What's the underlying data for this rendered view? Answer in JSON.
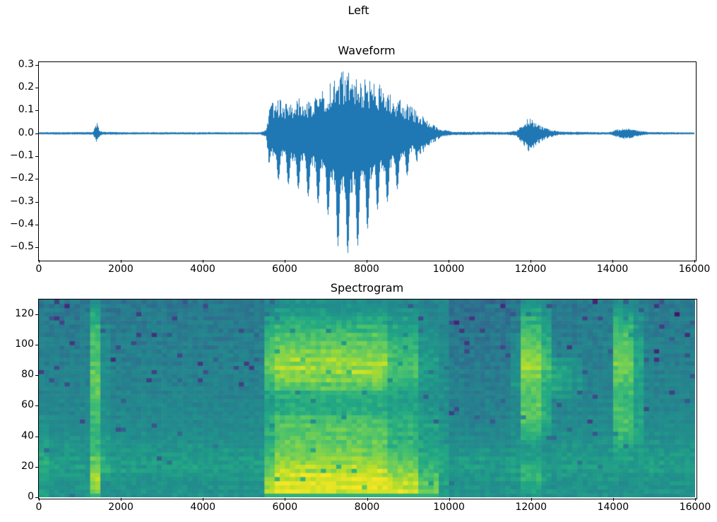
{
  "figure": {
    "suptitle": "Left",
    "background_color": "#ffffff",
    "text_color": "#000000"
  },
  "chart_data": [
    {
      "type": "line",
      "role": "audio-waveform",
      "title": "Waveform",
      "line_color": "#1f77b4",
      "x_range": [
        0,
        16000
      ],
      "y_range": [
        -0.552,
        0.312
      ],
      "x_tick_values": [
        0,
        2000,
        4000,
        6000,
        8000,
        10000,
        12000,
        14000,
        16000
      ],
      "x_tick_labels": [
        "0",
        "2000",
        "4000",
        "6000",
        "8000",
        "10000",
        "12000",
        "14000",
        "16000"
      ],
      "y_tick_values": [
        0.3,
        0.2,
        0.1,
        0.0,
        -0.1,
        -0.2,
        -0.3,
        -0.4,
        -0.5
      ],
      "y_tick_labels": [
        "0.3",
        "0.2",
        "0.1",
        "0.0",
        "−0.1",
        "−0.2",
        "−0.3",
        "−0.4",
        "−0.5"
      ],
      "grid": false,
      "legend": "none",
      "envelope_points": [
        [
          0,
          0.005,
          -0.005
        ],
        [
          1310,
          0.006,
          -0.006
        ],
        [
          1380,
          0.034,
          -0.03
        ],
        [
          1415,
          0.05,
          -0.047
        ],
        [
          1460,
          0.018,
          -0.018
        ],
        [
          1540,
          0.007,
          -0.007
        ],
        [
          2200,
          0.005,
          -0.005
        ],
        [
          5400,
          0.005,
          -0.005
        ],
        [
          5540,
          0.018,
          -0.018
        ],
        [
          5610,
          0.1,
          -0.14
        ],
        [
          5700,
          0.14,
          -0.19
        ],
        [
          5900,
          0.15,
          -0.21
        ],
        [
          6100,
          0.135,
          -0.225
        ],
        [
          6300,
          0.16,
          -0.24
        ],
        [
          6500,
          0.145,
          -0.27
        ],
        [
          6700,
          0.165,
          -0.29
        ],
        [
          6900,
          0.19,
          -0.32
        ],
        [
          7100,
          0.23,
          -0.37
        ],
        [
          7300,
          0.26,
          -0.5
        ],
        [
          7500,
          0.28,
          -0.53
        ],
        [
          7700,
          0.25,
          -0.5
        ],
        [
          7900,
          0.235,
          -0.48
        ],
        [
          8050,
          0.24,
          -0.4
        ],
        [
          8200,
          0.225,
          -0.34
        ],
        [
          8400,
          0.21,
          -0.32
        ],
        [
          8600,
          0.18,
          -0.28
        ],
        [
          8800,
          0.15,
          -0.23
        ],
        [
          9000,
          0.13,
          -0.18
        ],
        [
          9200,
          0.1,
          -0.13
        ],
        [
          9400,
          0.07,
          -0.08
        ],
        [
          9600,
          0.04,
          -0.045
        ],
        [
          9800,
          0.018,
          -0.018
        ],
        [
          10100,
          0.008,
          -0.008
        ],
        [
          11400,
          0.006,
          -0.006
        ],
        [
          11650,
          0.012,
          -0.012
        ],
        [
          11800,
          0.045,
          -0.05
        ],
        [
          11950,
          0.07,
          -0.082
        ],
        [
          12100,
          0.055,
          -0.06
        ],
        [
          12250,
          0.035,
          -0.038
        ],
        [
          12450,
          0.018,
          -0.018
        ],
        [
          12700,
          0.008,
          -0.008
        ],
        [
          13900,
          0.005,
          -0.005
        ],
        [
          14080,
          0.016,
          -0.015
        ],
        [
          14250,
          0.028,
          -0.026
        ],
        [
          14450,
          0.025,
          -0.023
        ],
        [
          14650,
          0.012,
          -0.011
        ],
        [
          14850,
          0.006,
          -0.006
        ],
        [
          16000,
          0.004,
          -0.004
        ]
      ]
    },
    {
      "type": "heatmap",
      "role": "audio-spectrogram",
      "title": "Spectrogram",
      "colormap": "viridis",
      "colormap_stops": [
        [
          0.0,
          "#440154"
        ],
        [
          0.1,
          "#482878"
        ],
        [
          0.2,
          "#3e4a89"
        ],
        [
          0.3,
          "#31688e"
        ],
        [
          0.4,
          "#26828e"
        ],
        [
          0.5,
          "#21918c"
        ],
        [
          0.6,
          "#22a884"
        ],
        [
          0.7,
          "#44bf70"
        ],
        [
          0.8,
          "#7ad151"
        ],
        [
          0.9,
          "#bddf26"
        ],
        [
          1.0,
          "#fde725"
        ]
      ],
      "x_range": [
        0,
        16000
      ],
      "y_range": [
        0,
        129.5
      ],
      "x_tick_values": [
        0,
        2000,
        4000,
        6000,
        8000,
        10000,
        12000,
        14000,
        16000
      ],
      "x_tick_labels": [
        "0",
        "2000",
        "4000",
        "6000",
        "8000",
        "10000",
        "12000",
        "14000",
        "16000"
      ],
      "y_tick_values": [
        0,
        20,
        40,
        60,
        80,
        100,
        120
      ],
      "y_tick_labels": [
        "0",
        "20",
        "40",
        "60",
        "80",
        "100",
        "120"
      ],
      "value_range": [
        0,
        100
      ],
      "grid": {
        "time_cols": 64,
        "freq_rows": 24,
        "col_x_step": 250,
        "row_y_step": 5.4,
        "row_order": "bottom_to_top",
        "profiles": {
          "Q": [
            50,
            50,
            52,
            55,
            55,
            52,
            50,
            48,
            46,
            45,
            44,
            43,
            42,
            42,
            41,
            41,
            40,
            40,
            39,
            39,
            38,
            38,
            37,
            36
          ],
          "Q2": [
            50,
            50,
            52,
            54,
            54,
            50,
            47,
            45,
            43,
            42,
            41,
            40,
            39,
            39,
            38,
            38,
            37,
            37,
            36,
            36,
            35,
            35,
            34,
            33
          ],
          "E": [
            56,
            56,
            58,
            61,
            61,
            58,
            56,
            54,
            52,
            51,
            44,
            43,
            42,
            42,
            41,
            41,
            40,
            40,
            39,
            39,
            38,
            38,
            37,
            36
          ],
          "S": [
            78,
            82,
            84,
            80,
            74,
            70,
            66,
            64,
            66,
            68,
            70,
            72,
            74,
            75,
            75,
            74,
            73,
            72,
            70,
            68,
            66,
            62,
            58,
            52
          ],
          "S2": [
            50,
            50,
            58,
            61,
            61,
            58,
            56,
            54,
            52,
            51,
            50,
            49,
            48,
            48,
            47,
            47,
            46,
            46,
            45,
            45,
            44,
            38,
            37,
            36
          ],
          "O": [
            88,
            86,
            80,
            74,
            70,
            66,
            64,
            62,
            64,
            62,
            58,
            56,
            58,
            64,
            70,
            74,
            76,
            74,
            70,
            66,
            60,
            55,
            50,
            45
          ],
          "P": [
            96,
            95,
            93,
            88,
            82,
            78,
            76,
            74,
            74,
            70,
            62,
            60,
            64,
            74,
            80,
            84,
            84,
            80,
            76,
            72,
            66,
            60,
            54,
            48
          ],
          "D1": [
            92,
            90,
            86,
            80,
            74,
            70,
            66,
            64,
            64,
            62,
            58,
            56,
            58,
            64,
            68,
            70,
            70,
            68,
            66,
            62,
            58,
            54,
            50,
            45
          ],
          "D2": [
            80,
            76,
            70,
            66,
            62,
            60,
            58,
            56,
            56,
            54,
            52,
            50,
            50,
            52,
            54,
            56,
            56,
            54,
            52,
            50,
            48,
            46,
            44,
            40
          ],
          "D3": [
            56,
            56,
            58,
            61,
            61,
            58,
            56,
            54,
            52,
            51,
            50,
            49,
            48,
            48,
            47,
            47,
            46,
            46,
            45,
            45,
            44,
            44,
            43,
            42
          ],
          "B0": [
            50,
            50,
            52,
            55,
            55,
            52,
            50,
            48,
            46,
            45,
            44,
            43,
            42,
            50,
            49,
            49,
            48,
            48,
            47,
            47,
            38,
            38,
            37,
            36
          ],
          "B": [
            55,
            60,
            66,
            64,
            58,
            54,
            56,
            62,
            68,
            72,
            74,
            74,
            72,
            74,
            80,
            84,
            84,
            80,
            74,
            72,
            68,
            64,
            58,
            50
          ],
          "Bf": [
            52,
            54,
            58,
            56,
            52,
            50,
            50,
            54,
            58,
            60,
            62,
            62,
            60,
            62,
            66,
            70,
            70,
            66,
            62,
            60,
            56,
            54,
            50,
            44
          ],
          "W1": [
            50,
            50,
            52,
            55,
            55,
            52,
            50,
            48,
            46,
            45,
            44,
            43,
            56,
            58,
            60,
            58,
            56,
            40,
            39,
            39,
            38,
            38,
            37,
            36
          ],
          "W2": [
            50,
            50,
            52,
            55,
            55,
            52,
            50,
            48,
            46,
            45,
            44,
            43,
            52,
            55,
            56,
            55,
            52,
            40,
            39,
            39,
            38,
            38,
            37,
            36
          ],
          "W3": [
            50,
            50,
            52,
            55,
            55,
            52,
            50,
            48,
            46,
            45,
            44,
            43,
            46,
            50,
            52,
            50,
            46,
            40,
            39,
            39,
            38,
            38,
            37,
            36
          ],
          "C": [
            50,
            50,
            52,
            54,
            56,
            58,
            62,
            66,
            68,
            70,
            70,
            68,
            68,
            70,
            74,
            76,
            78,
            76,
            72,
            70,
            66,
            62,
            56,
            48
          ],
          "Cf": [
            50,
            50,
            52,
            54,
            55,
            55,
            56,
            57,
            57,
            58,
            57,
            56,
            55,
            56,
            58,
            58,
            59,
            58,
            56,
            54,
            52,
            50,
            46,
            42
          ]
        },
        "columns": [
          "E",
          "Q",
          "Q",
          "Q",
          "Q",
          "S",
          "S2",
          "Q",
          "Q",
          "Q",
          "Q",
          "Q",
          "Q",
          "Q",
          "Q",
          "Q",
          "Q",
          "Q",
          "Q",
          "Q",
          "Q",
          "Q",
          "O",
          "P",
          "P",
          "P",
          "P",
          "P",
          "P",
          "P",
          "P",
          "P",
          "P",
          "P",
          "D1",
          "D1",
          "D1",
          "D2",
          "D2",
          "D3",
          "Q2",
          "Q2",
          "Q2",
          "Q2",
          "Q2",
          "Q2",
          "B0",
          "B",
          "B",
          "Bf",
          "W1",
          "W2",
          "W3",
          "Q",
          "Q",
          "Q",
          "C",
          "C",
          "Cf",
          "Q",
          "Q",
          "Q",
          "Q",
          "Q"
        ]
      }
    }
  ]
}
